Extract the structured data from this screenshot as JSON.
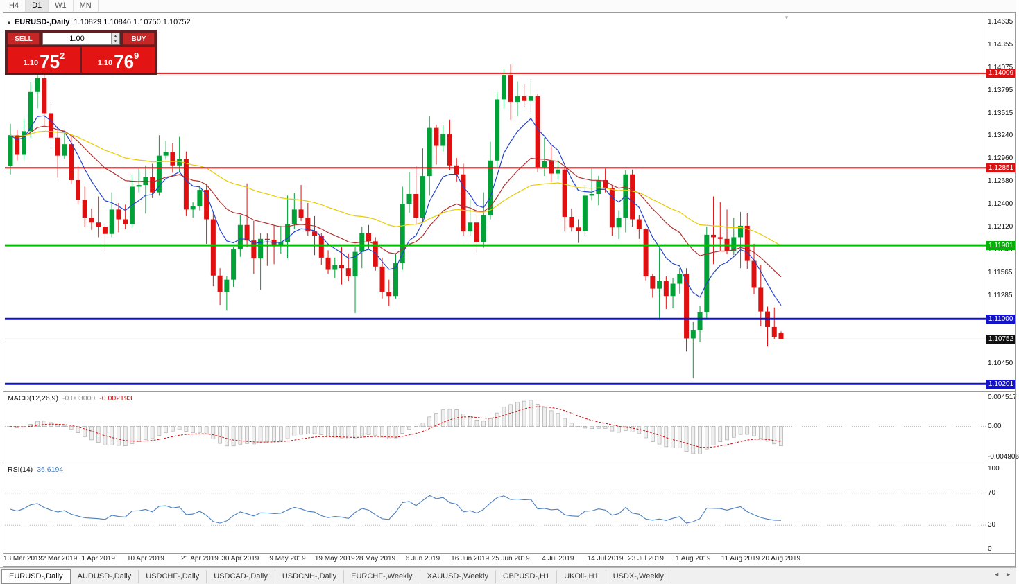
{
  "timeframe_bar": {
    "items": [
      "H4",
      "D1",
      "W1",
      "MN"
    ],
    "active": "D1"
  },
  "chart_header": {
    "collapse_icon": "▲",
    "symbol": "EURUSD-,Daily",
    "ohlc": "1.10829 1.10846 1.10750 1.10752"
  },
  "trade_panel": {
    "sell_label": "SELL",
    "buy_label": "BUY",
    "volume": "1.00",
    "sell_price": {
      "prefix": "1.10",
      "big": "75",
      "sup": "2"
    },
    "buy_price": {
      "prefix": "1.10",
      "big": "76",
      "sup": "9"
    }
  },
  "indicators": {
    "macd_label": "MACD(12,26,9)",
    "macd_value1": "-0.003000",
    "macd_value2": "-0.002193",
    "rsi_label": "RSI(14)",
    "rsi_value": "36.6194"
  },
  "axis": {
    "main_ticks": [
      "1.14635",
      "1.14355",
      "1.14075",
      "1.13795",
      "1.13515",
      "1.13240",
      "1.12960",
      "1.12680",
      "1.12400",
      "1.12120",
      "1.11845",
      "1.11565",
      "1.11285",
      "1.10450"
    ],
    "badges": [
      {
        "text": "1.14009",
        "price": 1.14009,
        "bg": "#dd1111",
        "fg": "#ffffff"
      },
      {
        "text": "1.12851",
        "price": 1.12851,
        "bg": "#dd1111",
        "fg": "#ffffff"
      },
      {
        "text": "1.11901",
        "price": 1.11901,
        "bg": "#00b300",
        "fg": "#ffffff"
      },
      {
        "text": "1.11000",
        "price": 1.11,
        "bg": "#1313cc",
        "fg": "#ffffff"
      },
      {
        "text": "1.10752",
        "price": 1.10752,
        "bg": "#111111",
        "fg": "#ffffff"
      },
      {
        "text": "1.10201",
        "price": 1.10201,
        "bg": "#1313cc",
        "fg": "#ffffff"
      }
    ],
    "macd_ticks": [
      "0.004517",
      "0.00",
      "-0.004806"
    ],
    "rsi_ticks": [
      "100",
      "70",
      "30",
      "0"
    ]
  },
  "tabs": {
    "items": [
      "EURUSD-,Daily",
      "AUDUSD-,Daily",
      "USDCHF-,Daily",
      "USDCAD-,Daily",
      "USDCNH-,Daily",
      "EURCHF-,Weekly",
      "XAUUSD-,Weekly",
      "GBPUSD-,H1",
      "UKOil-,H1",
      "USDX-,Weekly"
    ],
    "active_index": 0,
    "scroll_left": "◄",
    "scroll_right": "►"
  },
  "chart_data": {
    "type": "candlestick",
    "symbol": "EURUSD",
    "timeframe": "Daily",
    "title": "EURUSD-,Daily 1.10829 1.10846 1.10750 1.10752",
    "price_range": [
      1.1011,
      1.1467
    ],
    "up_color": "#00a136",
    "down_color": "#e01010",
    "x_labels": [
      {
        "i": 0,
        "label": "13 Mar 2019"
      },
      {
        "i": 7,
        "label": "22 Mar 2019"
      },
      {
        "i": 13,
        "label": "1 Apr 2019"
      },
      {
        "i": 20,
        "label": "10 Apr 2019"
      },
      {
        "i": 28,
        "label": "21 Apr 2019"
      },
      {
        "i": 34,
        "label": "30 Apr 2019"
      },
      {
        "i": 41,
        "label": "9 May 2019"
      },
      {
        "i": 48,
        "label": "19 May 2019"
      },
      {
        "i": 54,
        "label": "28 May 2019"
      },
      {
        "i": 61,
        "label": "6 Jun 2019"
      },
      {
        "i": 68,
        "label": "16 Jun 2019"
      },
      {
        "i": 74,
        "label": "25 Jun 2019"
      },
      {
        "i": 81,
        "label": "4 Jul 2019"
      },
      {
        "i": 88,
        "label": "14 Jul 2019"
      },
      {
        "i": 94,
        "label": "23 Jul 2019"
      },
      {
        "i": 101,
        "label": "1 Aug 2019"
      },
      {
        "i": 108,
        "label": "11 Aug 2019"
      },
      {
        "i": 114,
        "label": "20 Aug 2019"
      }
    ],
    "candles": [
      [
        1.1287,
        1.1339,
        1.1277,
        1.1325
      ],
      [
        1.1325,
        1.1332,
        1.1294,
        1.1301
      ],
      [
        1.1301,
        1.1345,
        1.1295,
        1.133
      ],
      [
        1.133,
        1.139,
        1.1322,
        1.1378
      ],
      [
        1.1378,
        1.1405,
        1.1358,
        1.1395
      ],
      [
        1.1395,
        1.1404,
        1.1336,
        1.1352
      ],
      [
        1.1352,
        1.1366,
        1.131,
        1.1322
      ],
      [
        1.1322,
        1.1336,
        1.1273,
        1.13
      ],
      [
        1.13,
        1.133,
        1.1296,
        1.1314
      ],
      [
        1.1314,
        1.1326,
        1.1265,
        1.127
      ],
      [
        1.127,
        1.1288,
        1.1241,
        1.1246
      ],
      [
        1.1246,
        1.1262,
        1.1213,
        1.1224
      ],
      [
        1.1224,
        1.1235,
        1.1209,
        1.1218
      ],
      [
        1.1218,
        1.125,
        1.12,
        1.1213
      ],
      [
        1.1213,
        1.1216,
        1.1183,
        1.1204
      ],
      [
        1.1204,
        1.1255,
        1.12,
        1.1234
      ],
      [
        1.1234,
        1.1242,
        1.1206,
        1.1222
      ],
      [
        1.1222,
        1.124,
        1.121,
        1.1216
      ],
      [
        1.1216,
        1.1276,
        1.1212,
        1.1262
      ],
      [
        1.1262,
        1.1285,
        1.1255,
        1.1264
      ],
      [
        1.1264,
        1.1288,
        1.1229,
        1.1274
      ],
      [
        1.1274,
        1.129,
        1.1248,
        1.1255
      ],
      [
        1.1255,
        1.1325,
        1.1251,
        1.13
      ],
      [
        1.13,
        1.1318,
        1.1295,
        1.1304
      ],
      [
        1.1304,
        1.1315,
        1.1279,
        1.1288
      ],
      [
        1.1288,
        1.1323,
        1.128,
        1.1296
      ],
      [
        1.1296,
        1.1305,
        1.1226,
        1.1234
      ],
      [
        1.1234,
        1.1243,
        1.1224,
        1.1238
      ],
      [
        1.1238,
        1.1262,
        1.1233,
        1.1258
      ],
      [
        1.1258,
        1.1264,
        1.1192,
        1.1222
      ],
      [
        1.1222,
        1.123,
        1.114,
        1.1153
      ],
      [
        1.1153,
        1.1162,
        1.1117,
        1.1133
      ],
      [
        1.1133,
        1.1152,
        1.111,
        1.1148
      ],
      [
        1.1148,
        1.1188,
        1.1139,
        1.1185
      ],
      [
        1.1185,
        1.1227,
        1.1176,
        1.1215
      ],
      [
        1.1215,
        1.1266,
        1.1188,
        1.1196
      ],
      [
        1.1196,
        1.122,
        1.1155,
        1.1174
      ],
      [
        1.1174,
        1.1205,
        1.1135,
        1.1198
      ],
      [
        1.1198,
        1.1205,
        1.1165,
        1.1197
      ],
      [
        1.1197,
        1.1215,
        1.1167,
        1.1191
      ],
      [
        1.1191,
        1.1214,
        1.118,
        1.1194
      ],
      [
        1.1194,
        1.1251,
        1.1174,
        1.1216
      ],
      [
        1.1216,
        1.1254,
        1.121,
        1.1234
      ],
      [
        1.1234,
        1.1264,
        1.122,
        1.1224
      ],
      [
        1.1224,
        1.1242,
        1.1202,
        1.1207
      ],
      [
        1.1207,
        1.1226,
        1.1178,
        1.1202
      ],
      [
        1.1202,
        1.1205,
        1.1166,
        1.1175
      ],
      [
        1.1175,
        1.1184,
        1.1155,
        1.116
      ],
      [
        1.116,
        1.1175,
        1.115,
        1.1166
      ],
      [
        1.1166,
        1.1188,
        1.1142,
        1.1162
      ],
      [
        1.1162,
        1.118,
        1.1146,
        1.1152
      ],
      [
        1.1152,
        1.1188,
        1.1107,
        1.1182
      ],
      [
        1.1182,
        1.1213,
        1.1162,
        1.1205
      ],
      [
        1.1205,
        1.1215,
        1.1186,
        1.1195
      ],
      [
        1.1195,
        1.12,
        1.1159,
        1.1164
      ],
      [
        1.1164,
        1.1175,
        1.1125,
        1.1133
      ],
      [
        1.1133,
        1.1148,
        1.1116,
        1.1128
      ],
      [
        1.1128,
        1.118,
        1.1125,
        1.1168
      ],
      [
        1.1168,
        1.1262,
        1.116,
        1.1241
      ],
      [
        1.1241,
        1.128,
        1.123,
        1.1253
      ],
      [
        1.1253,
        1.1287,
        1.1215,
        1.1224
      ],
      [
        1.1224,
        1.1309,
        1.1219,
        1.1275
      ],
      [
        1.1275,
        1.1348,
        1.1251,
        1.1334
      ],
      [
        1.1334,
        1.1338,
        1.1289,
        1.1312
      ],
      [
        1.1312,
        1.1337,
        1.1305,
        1.1326
      ],
      [
        1.1326,
        1.1344,
        1.1282,
        1.1288
      ],
      [
        1.1288,
        1.1297,
        1.1268,
        1.1277
      ],
      [
        1.1277,
        1.129,
        1.1202,
        1.1207
      ],
      [
        1.1207,
        1.1246,
        1.1202,
        1.1218
      ],
      [
        1.1218,
        1.1243,
        1.1181,
        1.1194
      ],
      [
        1.1194,
        1.1255,
        1.1187,
        1.1227
      ],
      [
        1.1227,
        1.1317,
        1.1222,
        1.1294
      ],
      [
        1.1294,
        1.1378,
        1.1285,
        1.1369
      ],
      [
        1.1369,
        1.1406,
        1.1358,
        1.1399
      ],
      [
        1.1399,
        1.1412,
        1.1344,
        1.1366
      ],
      [
        1.1366,
        1.1391,
        1.1348,
        1.1373
      ],
      [
        1.1373,
        1.1388,
        1.136,
        1.1367
      ],
      [
        1.1367,
        1.1394,
        1.1351,
        1.1373
      ],
      [
        1.1373,
        1.1376,
        1.128,
        1.1286
      ],
      [
        1.1286,
        1.1322,
        1.1275,
        1.1293
      ],
      [
        1.1293,
        1.1312,
        1.1268,
        1.1278
      ],
      [
        1.1278,
        1.1295,
        1.1271,
        1.1283
      ],
      [
        1.1283,
        1.1287,
        1.1207,
        1.1225
      ],
      [
        1.1225,
        1.1235,
        1.1207,
        1.1212
      ],
      [
        1.1212,
        1.1222,
        1.1193,
        1.1208
      ],
      [
        1.1208,
        1.1264,
        1.1202,
        1.1251
      ],
      [
        1.1251,
        1.1285,
        1.1245,
        1.1253
      ],
      [
        1.1253,
        1.1275,
        1.1239,
        1.127
      ],
      [
        1.127,
        1.1284,
        1.1255,
        1.126
      ],
      [
        1.126,
        1.1263,
        1.1202,
        1.1212
      ],
      [
        1.1212,
        1.1233,
        1.1198,
        1.1224
      ],
      [
        1.1224,
        1.1282,
        1.1206,
        1.1277
      ],
      [
        1.1277,
        1.1283,
        1.1213,
        1.1222
      ],
      [
        1.1222,
        1.1227,
        1.1198,
        1.121
      ],
      [
        1.121,
        1.1211,
        1.1147,
        1.1152
      ],
      [
        1.1152,
        1.1155,
        1.1126,
        1.1137
      ],
      [
        1.1137,
        1.1187,
        1.1101,
        1.1146
      ],
      [
        1.1146,
        1.1152,
        1.1112,
        1.1128
      ],
      [
        1.1128,
        1.115,
        1.1113,
        1.1143
      ],
      [
        1.1143,
        1.1162,
        1.1131,
        1.1155
      ],
      [
        1.1155,
        1.1162,
        1.106,
        1.1076
      ],
      [
        1.1076,
        1.1096,
        1.1027,
        1.1086
      ],
      [
        1.1086,
        1.1116,
        1.1072,
        1.1108
      ],
      [
        1.1108,
        1.1213,
        1.1101,
        1.1203
      ],
      [
        1.1203,
        1.125,
        1.1167,
        1.12
      ],
      [
        1.12,
        1.1243,
        1.1183,
        1.1198
      ],
      [
        1.1198,
        1.1234,
        1.1179,
        1.1183
      ],
      [
        1.1183,
        1.1224,
        1.1178,
        1.12
      ],
      [
        1.12,
        1.1231,
        1.1162,
        1.1214
      ],
      [
        1.1214,
        1.123,
        1.1161,
        1.1171
      ],
      [
        1.1171,
        1.1192,
        1.113,
        1.1138
      ],
      [
        1.1138,
        1.1166,
        1.1091,
        1.1109
      ],
      [
        1.1109,
        1.1115,
        1.1066,
        1.109
      ],
      [
        1.109,
        1.1114,
        1.1075,
        1.1078
      ],
      [
        1.10829,
        1.10846,
        1.1075,
        1.10752
      ]
    ],
    "levels": [
      {
        "price": 1.14009,
        "color": "#dd1111",
        "width": 2
      },
      {
        "price": 1.12851,
        "color": "#dd1111",
        "width": 2
      },
      {
        "price": 1.11901,
        "color": "#00c000",
        "width": 3
      },
      {
        "price": 1.11,
        "color": "#1313cc",
        "width": 3
      },
      {
        "price": 1.10201,
        "color": "#1313cc",
        "width": 3
      }
    ],
    "bid_line": {
      "price": 1.10752,
      "color": "#b8b8b8"
    },
    "moving_averages": [
      {
        "period": 8,
        "color": "#2244cc"
      },
      {
        "period": 21,
        "color": "#b03030"
      },
      {
        "period": 50,
        "color": "#e8cb00"
      }
    ],
    "macd": {
      "fast": 12,
      "slow": 26,
      "signal": 9,
      "range": [
        -0.004806,
        0.004517
      ],
      "hist_fill": "#efefef",
      "hist_stroke": "#9f9f9f",
      "signal_color": "#cc1111"
    },
    "rsi": {
      "period": 14,
      "range": [
        0,
        100
      ],
      "levels": [
        70,
        30
      ],
      "color": "#4a7fc0"
    }
  }
}
